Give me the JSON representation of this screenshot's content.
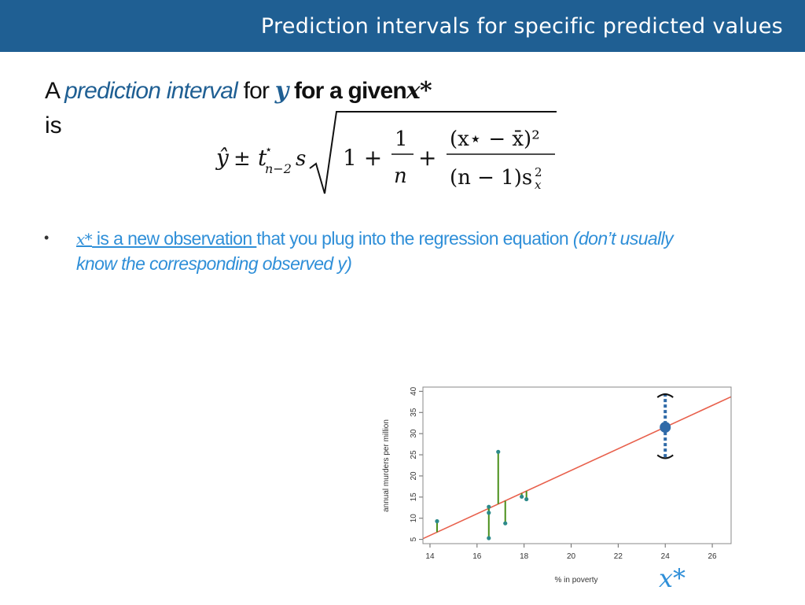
{
  "header": {
    "title": "Prediction intervals for specific predicted values"
  },
  "content": {
    "line1": {
      "a": "A",
      "prediction_interval": "prediction interval",
      "for": "for",
      "y_var": "y",
      "for_given": "for a given",
      "x_var": "x*"
    },
    "line2": "is",
    "bullet": {
      "marker": "•",
      "x_symbol": "x*",
      "new_observation": " is a  new observation ",
      "rest": "that you plug into the regression equation ",
      "note": "(don’t usually know the corresponding observed y)"
    },
    "big_xstar": "x*"
  },
  "colors": {
    "header_bg": "#1f5f93",
    "accent": "#2f8fd8",
    "fit_line": "#e8604c",
    "residual": "#4a8f1a",
    "point": "#2c8a8a",
    "interval": "#2f6aa8"
  },
  "chart_data": {
    "type": "scatter",
    "xlabel": "% in poverty",
    "ylabel": "annual murders per million",
    "xlim": [
      13.7,
      26.8
    ],
    "ylim": [
      4,
      41
    ],
    "xticks": [
      14,
      16,
      18,
      20,
      22,
      24,
      26
    ],
    "yticks": [
      5,
      10,
      15,
      20,
      25,
      30,
      35,
      40
    ],
    "points": [
      {
        "x": 14.3,
        "y": 9.3
      },
      {
        "x": 16.5,
        "y": 5.3
      },
      {
        "x": 16.5,
        "y": 11.3
      },
      {
        "x": 16.5,
        "y": 12.7
      },
      {
        "x": 16.9,
        "y": 25.7
      },
      {
        "x": 17.2,
        "y": 8.8
      },
      {
        "x": 17.9,
        "y": 15.1
      },
      {
        "x": 18.1,
        "y": 14.5
      }
    ],
    "regression_line": {
      "intercept": -29.9,
      "slope": 2.56
    },
    "prediction": {
      "x": 24,
      "y": 31.5,
      "lower": 24,
      "upper": 39.5
    }
  }
}
